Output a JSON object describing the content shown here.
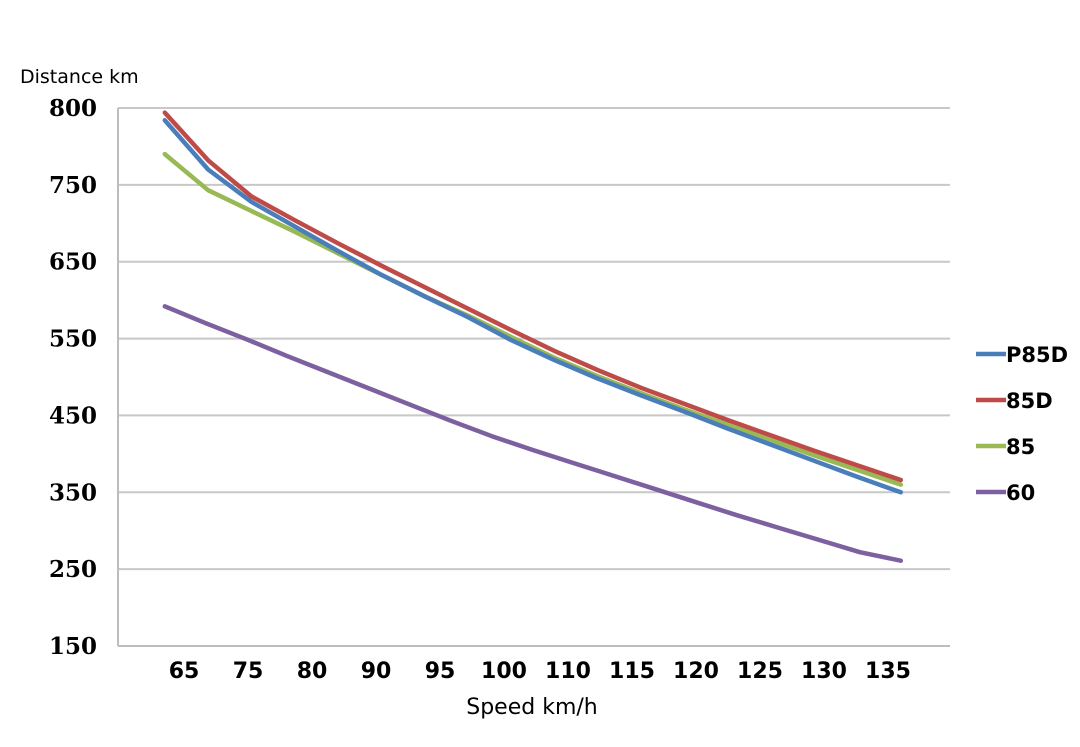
{
  "chart_data": {
    "type": "line",
    "ylabel": "Distance km",
    "xlabel": "Speed km/h",
    "x_tick_labels": [
      "65",
      "75",
      "80",
      "90",
      "95",
      "100",
      "110",
      "115",
      "120",
      "125",
      "130",
      "135"
    ],
    "y_tick_labels": [
      "150",
      "250",
      "350",
      "450",
      "550",
      "650",
      "750",
      "800"
    ],
    "grid": true,
    "legend_position": "right",
    "series": [
      {
        "name": "P85D",
        "color": "#4a7ebb",
        "x_start": 62,
        "x_end": 136,
        "values": [
          792,
          760,
          728,
          696,
          664,
          633,
          605,
          578,
          548,
          522,
          498,
          476,
          455,
          433,
          412,
          391,
          370,
          350
        ]
      },
      {
        "name": "85D",
        "color": "#be4b48",
        "x_start": 62,
        "x_end": 136,
        "values": [
          797,
          766,
          735,
          704,
          674,
          645,
          617,
          589,
          561,
          534,
          509,
          486,
          465,
          444,
          424,
          404,
          385,
          366
        ]
      },
      {
        "name": "85",
        "color": "#98b954",
        "x_start": 62,
        "x_end": 136,
        "values": [
          770,
          743,
          716,
          689,
          661,
          633,
          605,
          580,
          552,
          525,
          501,
          479,
          458,
          438,
          418,
          398,
          379,
          360
        ]
      },
      {
        "name": "60",
        "color": "#7d60a0",
        "x_start": 62,
        "x_end": 136,
        "values": [
          592,
          570,
          549,
          527,
          506,
          485,
          464,
          443,
          423,
          405,
          388,
          371,
          354,
          337,
          320,
          304,
          288,
          272,
          261
        ]
      }
    ]
  }
}
